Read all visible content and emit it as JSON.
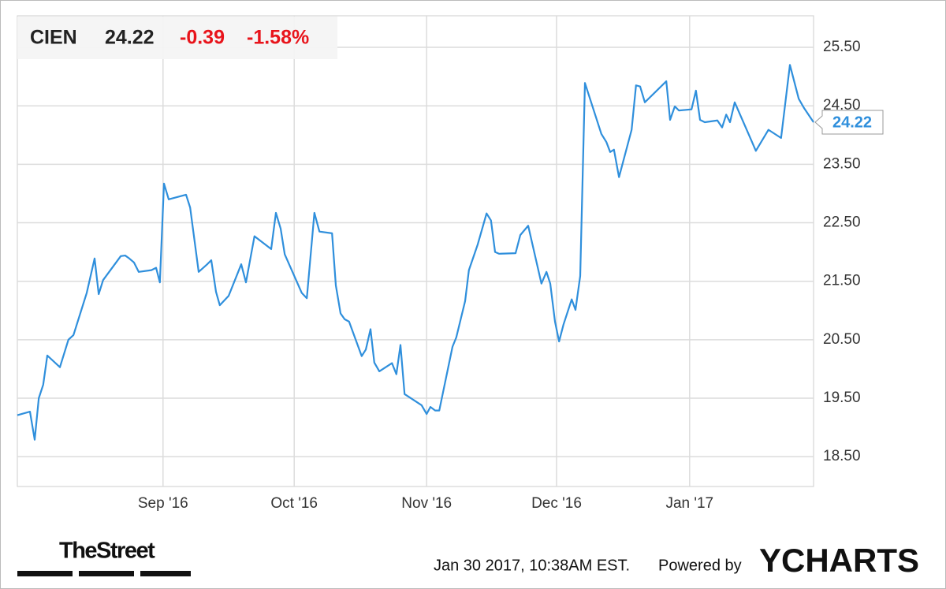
{
  "chart_data": {
    "type": "line",
    "header": {
      "symbol": "CIEN",
      "price": "24.22",
      "change": "-0.39",
      "change_percent": "-1.58%"
    },
    "series": [
      {
        "name": "CIEN",
        "color": "#2f8fdc",
        "x": [
          0,
          2.0,
          2.75,
          3.4,
          4.1,
          4.75,
          6.75,
          8.1,
          8.9,
          11.0,
          12.25,
          12.9,
          13.6,
          16.4,
          17.1,
          17.75,
          18.5,
          19.25,
          21.25,
          22.0,
          22.6,
          23.25,
          24.0,
          26.75,
          27.4,
          28.75,
          30.1,
          30.75,
          31.5,
          32.1,
          33.5,
          35.5,
          36.25,
          37.6,
          40.25,
          41.0,
          41.75,
          42.4,
          45.1,
          45.9,
          47.1,
          47.9,
          49.9,
          50.5,
          51.25,
          51.9,
          52.6,
          54.6,
          55.25,
          56.0,
          56.6,
          57.4,
          59.4,
          60.1,
          60.75,
          61.4,
          64.1,
          64.9,
          65.5,
          66.25,
          66.9,
          69.0,
          69.6,
          71.0,
          71.6,
          73.0,
          74.4,
          75.1,
          75.75,
          76.4,
          79.0,
          79.75,
          81.0,
          83.1,
          83.9,
          84.5,
          85.25,
          85.9,
          86.6,
          87.9,
          88.5,
          89.25,
          90.0,
          92.6,
          93.4,
          94.0,
          94.6,
          95.4,
          97.4,
          98.1,
          98.75,
          99.5,
          102.9,
          103.5,
          104.25,
          104.9,
          106.9,
          107.6,
          108.25,
          109.0,
          111.0,
          111.75,
          112.4,
          113.0,
          113.75,
          116.5,
          117.1,
          119.1,
          121.1,
          122.5,
          123.9,
          124.75,
          126.25
        ],
        "values": [
          19.21,
          19.27,
          18.79,
          19.5,
          19.73,
          20.23,
          20.03,
          20.5,
          20.58,
          21.3,
          21.89,
          21.28,
          21.52,
          21.93,
          21.94,
          21.89,
          21.82,
          21.66,
          21.69,
          21.73,
          21.48,
          23.17,
          22.9,
          22.98,
          22.76,
          21.66,
          21.79,
          21.86,
          21.32,
          21.09,
          21.25,
          21.79,
          21.48,
          22.27,
          22.05,
          22.67,
          22.4,
          21.96,
          21.3,
          21.21,
          22.67,
          22.35,
          22.32,
          21.43,
          20.95,
          20.85,
          20.81,
          20.22,
          20.33,
          20.68,
          20.11,
          19.96,
          20.1,
          19.91,
          20.41,
          19.57,
          19.38,
          19.23,
          19.35,
          19.29,
          19.29,
          20.38,
          20.54,
          21.16,
          21.69,
          22.13,
          22.66,
          22.54,
          22.0,
          21.97,
          21.98,
          22.29,
          22.45,
          21.46,
          21.66,
          21.46,
          20.81,
          20.47,
          20.76,
          21.19,
          21.01,
          21.59,
          24.89,
          24.02,
          23.88,
          23.71,
          23.75,
          23.28,
          24.09,
          24.85,
          24.83,
          24.56,
          24.92,
          24.26,
          24.49,
          24.42,
          24.44,
          24.76,
          24.26,
          24.22,
          24.25,
          24.13,
          24.35,
          24.22,
          24.56,
          23.88,
          23.73,
          24.09,
          23.95,
          25.2,
          24.62,
          24.46,
          24.22
        ]
      }
    ],
    "xlim": [
      0,
      126.25
    ],
    "xticks": [
      {
        "value": 23.1,
        "label": "Sep '16"
      },
      {
        "value": 43.9,
        "label": "Oct '16"
      },
      {
        "value": 64.9,
        "label": "Nov '16"
      },
      {
        "value": 85.5,
        "label": "Dec '16"
      },
      {
        "value": 106.6,
        "label": "Jan '17"
      }
    ],
    "ylim": [
      17.99,
      26.04
    ],
    "yticks": [
      {
        "value": 18.5,
        "label": "18.50"
      },
      {
        "value": 19.5,
        "label": "19.50"
      },
      {
        "value": 20.5,
        "label": "20.50"
      },
      {
        "value": 21.5,
        "label": "21.50"
      },
      {
        "value": 22.5,
        "label": "22.50"
      },
      {
        "value": 23.5,
        "label": "23.50"
      },
      {
        "value": 24.5,
        "label": "24.50"
      },
      {
        "value": 25.5,
        "label": "25.50"
      }
    ],
    "grid": true,
    "footer": {
      "source": "TheStreet",
      "timestamp": "Jan 30 2017, 10:38AM EST.",
      "powered": "Powered by",
      "brand": "YCHARTS"
    }
  }
}
